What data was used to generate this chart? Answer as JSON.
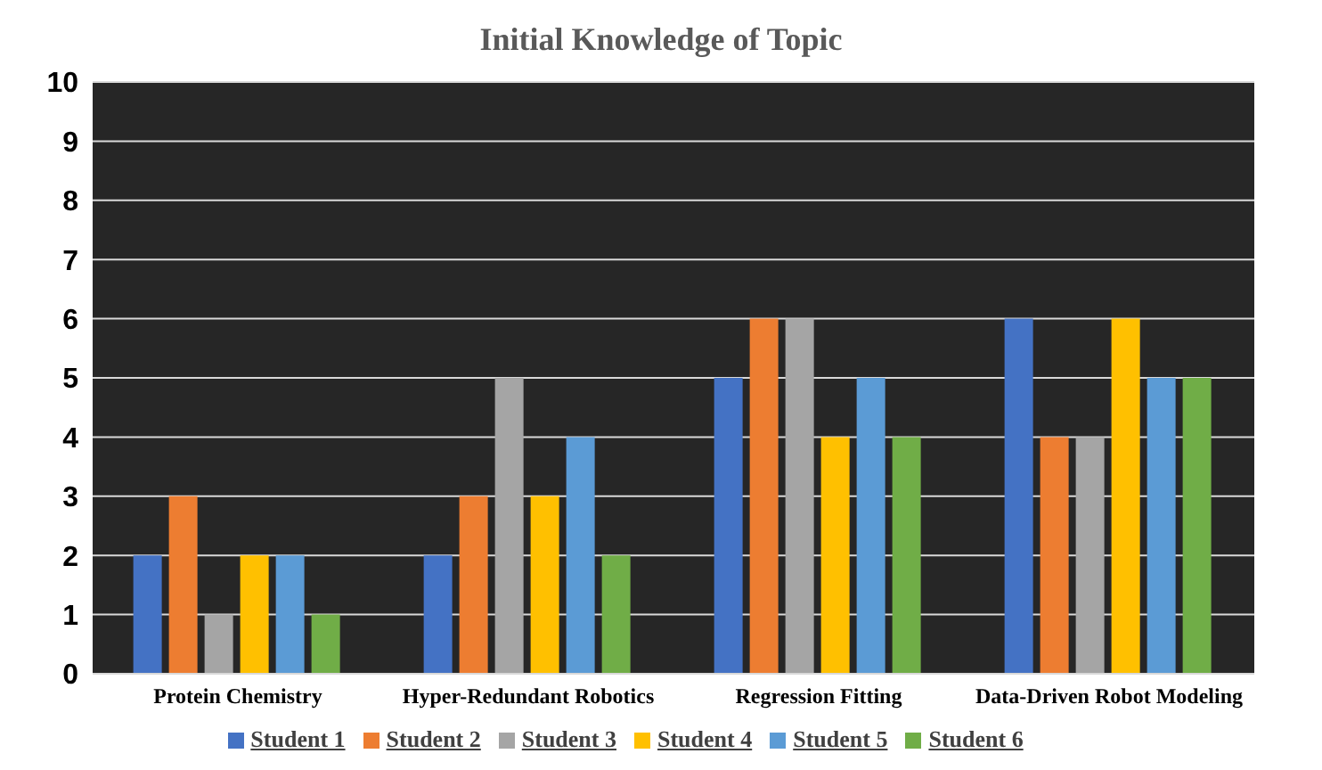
{
  "chart_data": {
    "type": "bar",
    "title": "Initial Knowledge of Topic",
    "categories": [
      "Protein Chemistry",
      "Hyper-Redundant Robotics",
      "Regression Fitting",
      "Data-Driven Robot Modeling"
    ],
    "series": [
      {
        "name": "Student 1",
        "color": "#4472c4",
        "values": [
          2,
          2,
          5,
          6
        ]
      },
      {
        "name": "Student 2",
        "color": "#ed7d31",
        "values": [
          3,
          3,
          6,
          4
        ]
      },
      {
        "name": "Student 3",
        "color": "#a5a5a5",
        "values": [
          1,
          5,
          6,
          4
        ]
      },
      {
        "name": "Student 4",
        "color": "#ffc000",
        "values": [
          2,
          3,
          4,
          6
        ]
      },
      {
        "name": "Student 5",
        "color": "#5b9bd5",
        "values": [
          2,
          4,
          5,
          5
        ]
      },
      {
        "name": "Student 6",
        "color": "#70ad47",
        "values": [
          1,
          2,
          4,
          5
        ]
      }
    ],
    "ylim": [
      0,
      10
    ],
    "yticks": [
      0,
      1,
      2,
      3,
      4,
      5,
      6,
      7,
      8,
      9,
      10
    ],
    "grid": "y",
    "legend": "bottom"
  }
}
